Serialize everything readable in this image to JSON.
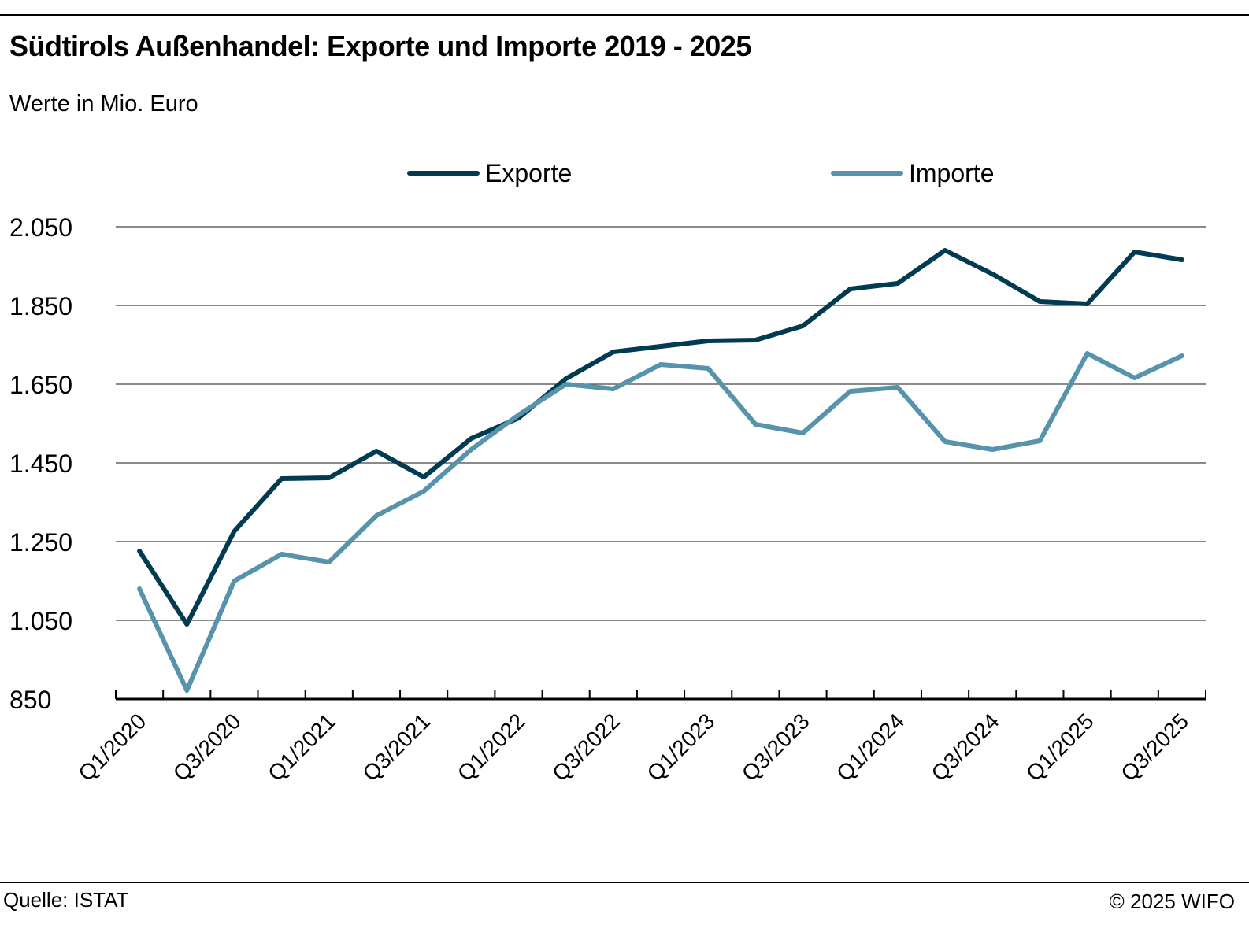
{
  "header": {
    "title": "Südtirols Außenhandel: Exporte und Importe 2019 - 2025",
    "subtitle": "Werte in Mio. Euro"
  },
  "footer": {
    "source": "Quelle: ISTAT",
    "copyright": "© 2025  WIFO"
  },
  "colors": {
    "exporte": "#003b52",
    "importe": "#5793ab"
  },
  "chart_data": {
    "type": "line",
    "title": "Südtirols Außenhandel: Exporte und Importe 2019 - 2025",
    "subtitle": "Werte in Mio. Euro",
    "xlabel": "",
    "ylabel": "",
    "ylim": [
      850,
      2050
    ],
    "yticks": [
      850,
      1050,
      1250,
      1450,
      1650,
      1850,
      2050
    ],
    "ytick_labels": [
      "850",
      "1.050",
      "1.250",
      "1.450",
      "1.650",
      "1.850",
      "2.050"
    ],
    "grid": true,
    "legend_position": "top",
    "categories": [
      "Q1/2020",
      "Q2/2020",
      "Q3/2020",
      "Q4/2020",
      "Q1/2021",
      "Q2/2021",
      "Q3/2021",
      "Q4/2021",
      "Q1/2022",
      "Q2/2022",
      "Q3/2022",
      "Q4/2022",
      "Q1/2023",
      "Q2/2023",
      "Q3/2023",
      "Q4/2023",
      "Q1/2024",
      "Q2/2024",
      "Q3/2024",
      "Q4/2024",
      "Q1/2025",
      "Q2/2025",
      "Q3/2025"
    ],
    "xtick_labels": [
      "Q1/2020",
      "Q3/2020",
      "Q1/2021",
      "Q3/2021",
      "Q1/2022",
      "Q3/2022",
      "Q1/2023",
      "Q3/2023",
      "Q1/2024",
      "Q3/2024",
      "Q1/2025",
      "Q3/2025"
    ],
    "series": [
      {
        "name": "Exporte",
        "values": [
          1226,
          1040,
          1276,
          1410,
          1412,
          1480,
          1414,
          1512,
          1564,
          1664,
          1732,
          1746,
          1760,
          1762,
          1798,
          1892,
          1906,
          1990,
          1930,
          1860,
          1854,
          1986,
          1966
        ]
      },
      {
        "name": "Importe",
        "values": [
          1130,
          872,
          1150,
          1218,
          1198,
          1316,
          1378,
          1484,
          1572,
          1650,
          1638,
          1700,
          1690,
          1548,
          1526,
          1632,
          1642,
          1504,
          1484,
          1506,
          1728,
          1666,
          1722
        ]
      }
    ]
  }
}
